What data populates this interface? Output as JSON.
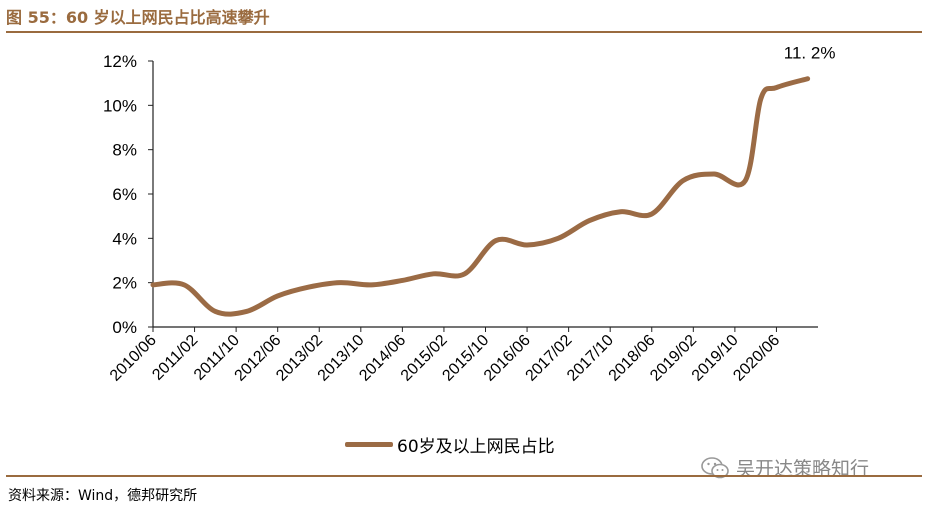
{
  "figure": {
    "title": "图 55：60 岁以上网民占比高速攀升",
    "source": "资料来源：Wind，德邦研究所",
    "watermark": "吴开达策略知行"
  },
  "chart_data": {
    "type": "line",
    "series_color": "#9b6b45",
    "y_ticks": [
      "0%",
      "2%",
      "4%",
      "6%",
      "8%",
      "10%",
      "12%"
    ],
    "ylim": [
      0,
      12
    ],
    "x_ticks": [
      "2010/06",
      "2011/02",
      "2011/10",
      "2012/06",
      "2013/02",
      "2013/10",
      "2014/06",
      "2015/02",
      "2015/10",
      "2016/06",
      "2017/02",
      "2017/10",
      "2018/06",
      "2019/02",
      "2019/10",
      "2020/06"
    ],
    "series": [
      {
        "name": "60岁及以上网民占比",
        "x": [
          "2010/06",
          "2010/12",
          "2011/06",
          "2011/12",
          "2012/06",
          "2012/12",
          "2013/06",
          "2013/12",
          "2014/06",
          "2014/12",
          "2015/06",
          "2015/12",
          "2016/06",
          "2016/12",
          "2017/06",
          "2017/12",
          "2018/06",
          "2018/12",
          "2019/06",
          "2019/12",
          "2020/03",
          "2020/06",
          "2020/12"
        ],
        "values": [
          1.9,
          1.9,
          0.7,
          0.7,
          1.4,
          1.8,
          2.0,
          1.9,
          2.1,
          2.4,
          2.4,
          3.9,
          3.7,
          4.0,
          4.8,
          5.2,
          5.1,
          6.6,
          6.9,
          6.6,
          10.3,
          10.8,
          11.2
        ]
      }
    ],
    "data_label": "11. 2%"
  }
}
